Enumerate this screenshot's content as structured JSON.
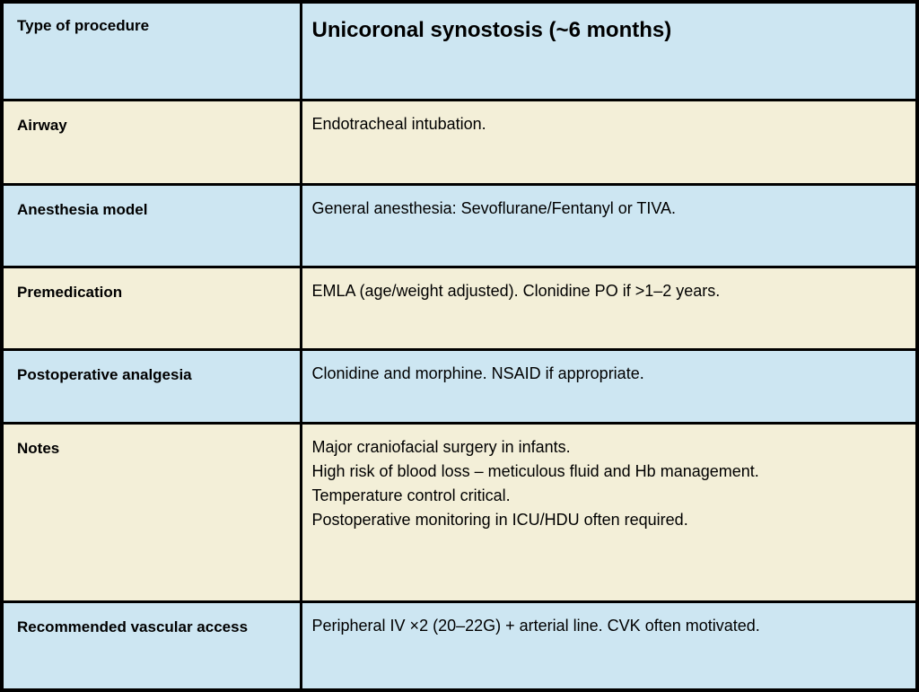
{
  "table": {
    "rows": [
      {
        "label": "Type of procedure",
        "lines": [
          "Unicoronal synostosis (~6 months)"
        ]
      },
      {
        "label": "Airway",
        "lines": [
          "Endotracheal intubation."
        ]
      },
      {
        "label": "Anesthesia model",
        "lines": [
          "General anesthesia: Sevoflurane/Fentanyl or TIVA."
        ]
      },
      {
        "label": "Premedication",
        "lines": [
          "EMLA (age/weight adjusted). Clonidine PO if >1–2 years."
        ]
      },
      {
        "label": "Postoperative analgesia",
        "lines": [
          "Clonidine and morphine. NSAID if appropriate."
        ]
      },
      {
        "label": "Notes",
        "lines": [
          "Major craniofacial surgery in infants.",
          "High risk of blood loss – meticulous fluid and Hb management.",
          "Temperature control critical.",
          "Postoperative monitoring in ICU/HDU often required."
        ]
      },
      {
        "label": "Recommended vascular access",
        "lines": [
          "Peripheral IV ×2 (20–22G) + arterial line. CVK often motivated."
        ]
      }
    ],
    "colors": {
      "row_blue": "#cde6f2",
      "row_cream": "#f3efd8",
      "border": "#000000"
    }
  }
}
